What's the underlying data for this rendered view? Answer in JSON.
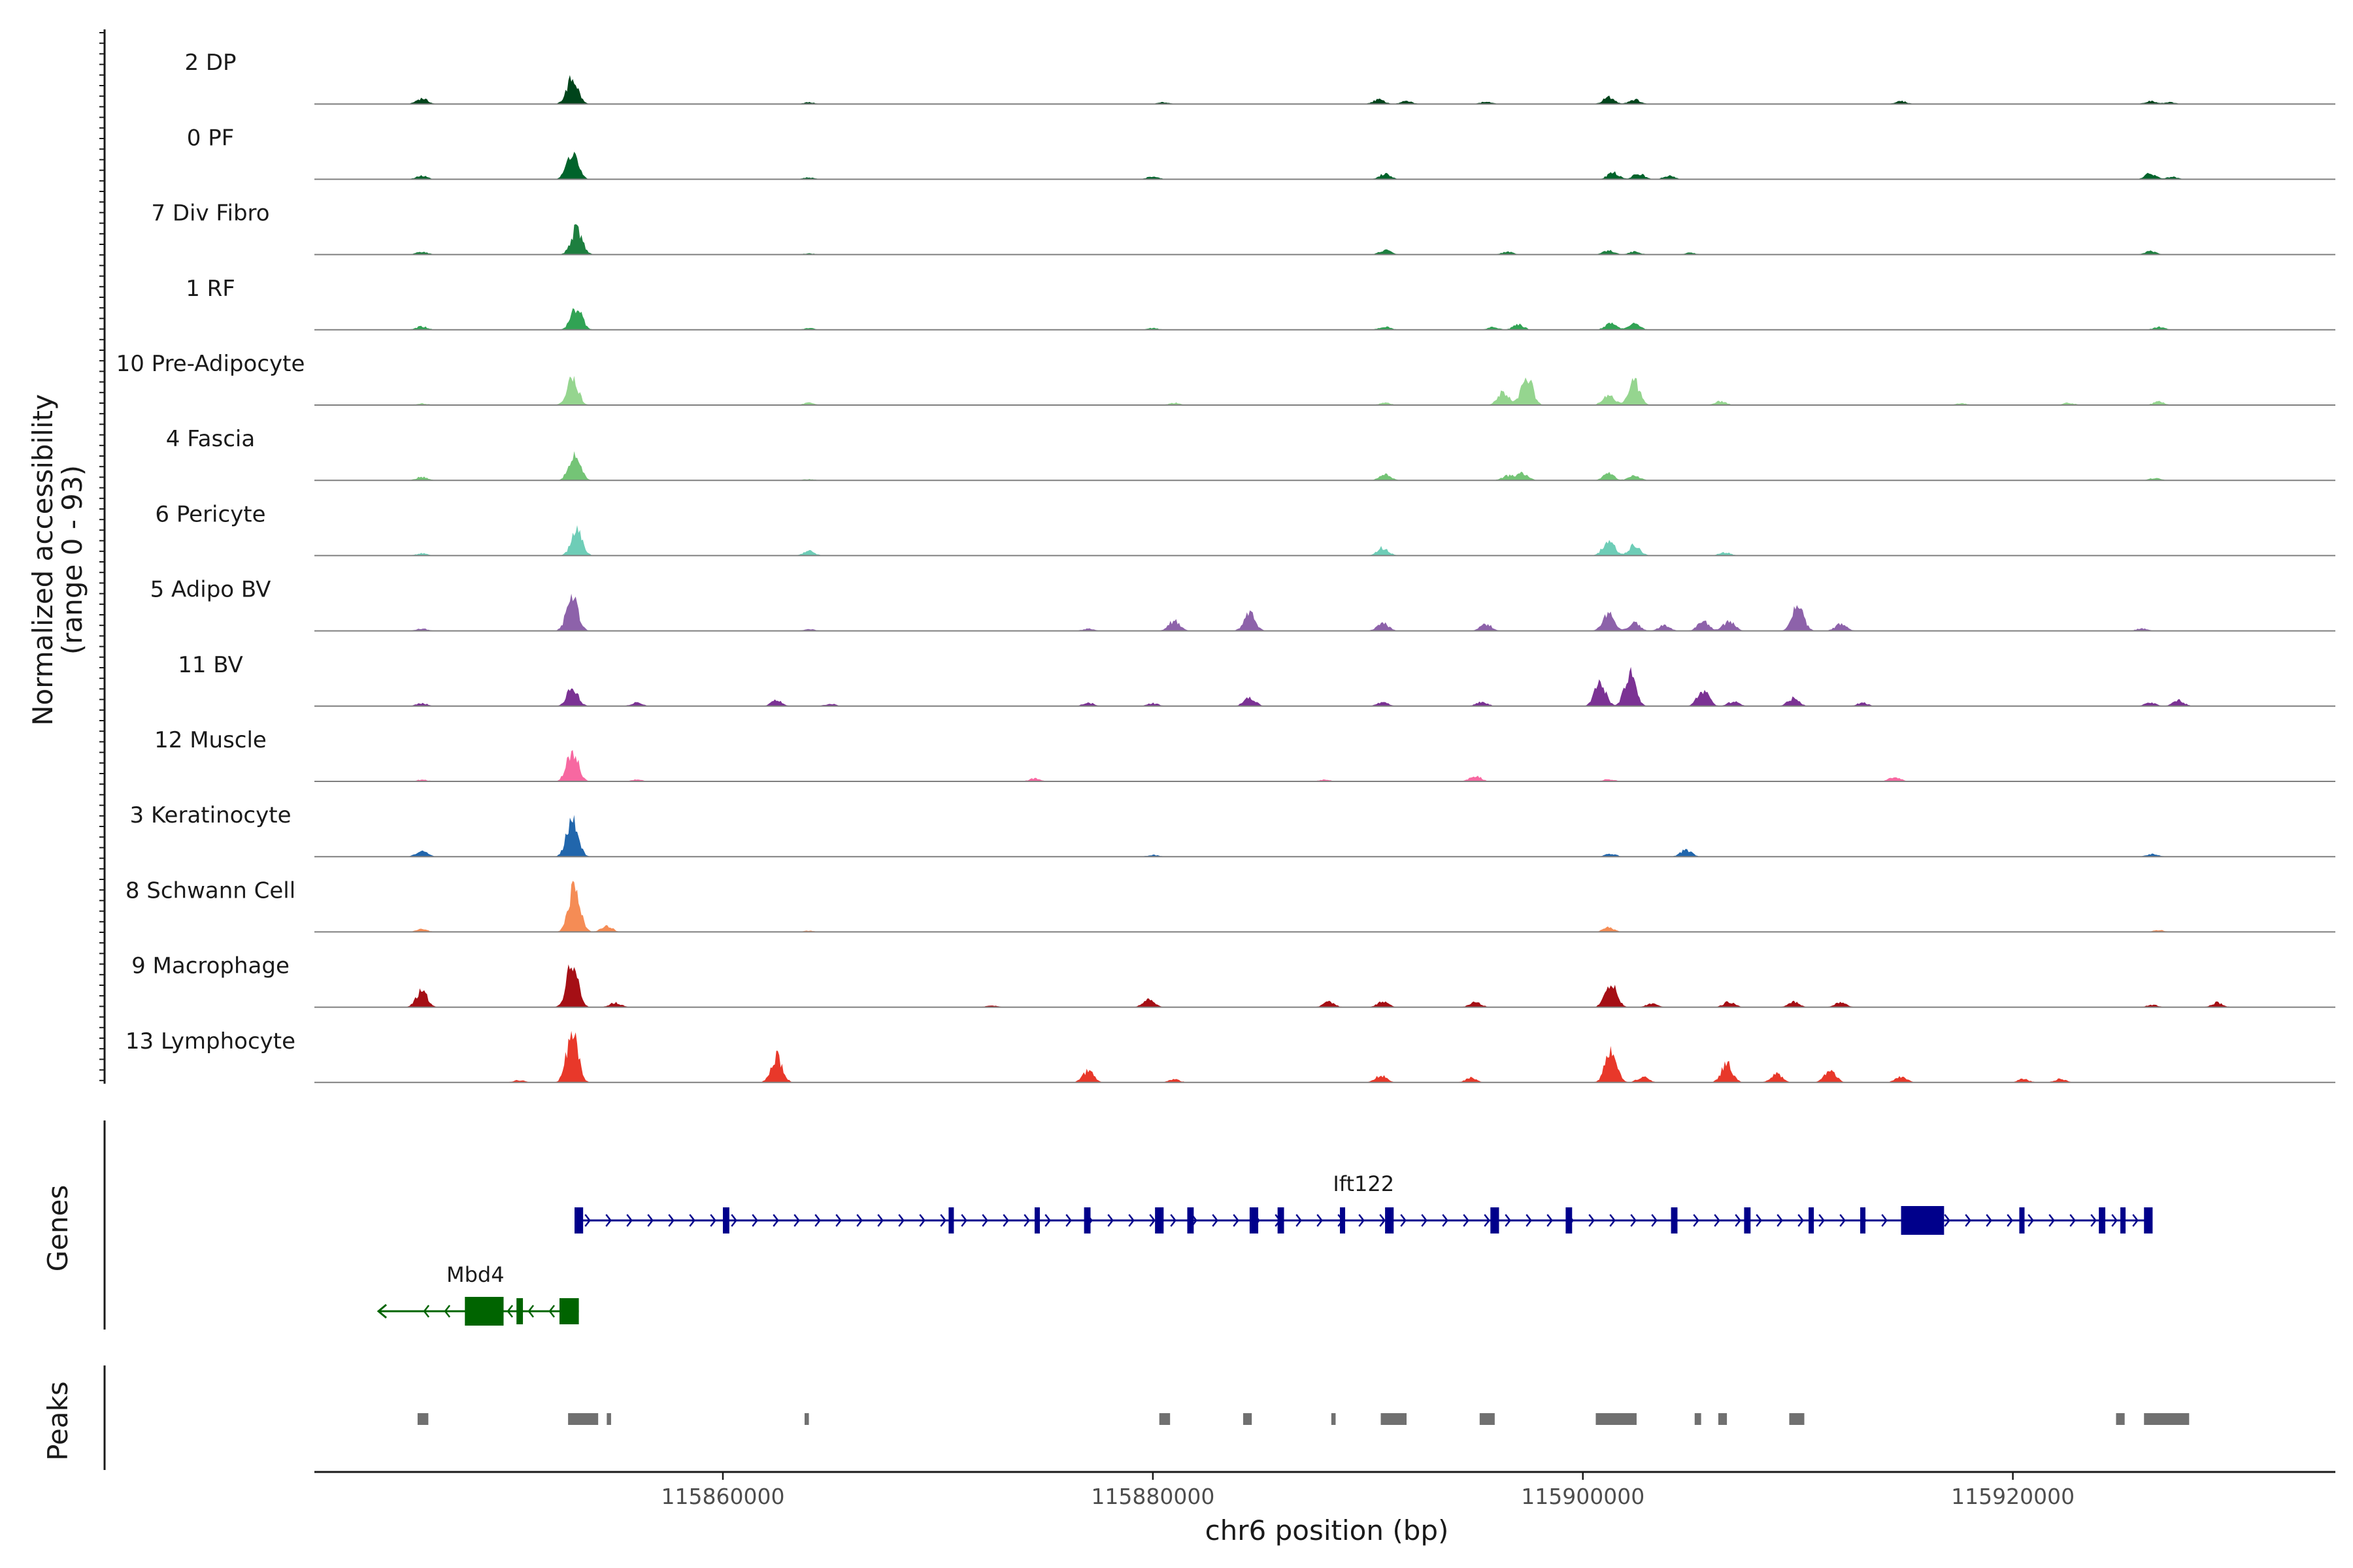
{
  "chart_data": {
    "type": "area",
    "title": "",
    "xlabel": "chr6 position (bp)",
    "ylabel": "Normalized accessibility",
    "ylabel_sub": "(range 0 - 93)",
    "y_range": [
      0,
      93
    ],
    "xlim": [
      115841000,
      115935000
    ],
    "x_ticks": [
      {
        "value": 115860000,
        "label": "115860000"
      },
      {
        "value": 115880000,
        "label": "115880000"
      },
      {
        "value": 115900000,
        "label": "115900000"
      },
      {
        "value": 115920000,
        "label": "115920000"
      }
    ],
    "tracks": [
      {
        "name": "2 DP",
        "color": "#00441b",
        "peaks": [
          [
            115846000,
            10
          ],
          [
            115853000,
            45
          ],
          [
            115864000,
            3
          ],
          [
            115880500,
            3
          ],
          [
            115890500,
            8
          ],
          [
            115891800,
            5
          ],
          [
            115895500,
            4
          ],
          [
            115901200,
            12
          ],
          [
            115902400,
            8
          ],
          [
            115914800,
            5
          ],
          [
            115926400,
            5
          ],
          [
            115927300,
            3
          ]
        ]
      },
      {
        "name": "0 PF",
        "color": "#00632b",
        "peaks": [
          [
            115846000,
            6
          ],
          [
            115853000,
            48
          ],
          [
            115864000,
            3
          ],
          [
            115880000,
            5
          ],
          [
            115890800,
            10
          ],
          [
            115901400,
            12
          ],
          [
            115902600,
            10
          ],
          [
            115904000,
            6
          ],
          [
            115926400,
            10
          ],
          [
            115927400,
            4
          ]
        ]
      },
      {
        "name": "7 Div Fibro",
        "color": "#1d7f3f",
        "peaks": [
          [
            115846000,
            5
          ],
          [
            115853200,
            45
          ],
          [
            115864000,
            2
          ],
          [
            115890800,
            8
          ],
          [
            115896500,
            5
          ],
          [
            115901200,
            7
          ],
          [
            115902400,
            5
          ],
          [
            115905000,
            3
          ],
          [
            115926400,
            6
          ]
        ]
      },
      {
        "name": "1 RF",
        "color": "#31a354",
        "peaks": [
          [
            115846000,
            6
          ],
          [
            115853200,
            40
          ],
          [
            115864000,
            3
          ],
          [
            115880000,
            3
          ],
          [
            115890800,
            6
          ],
          [
            115895800,
            5
          ],
          [
            115897000,
            9
          ],
          [
            115901300,
            12
          ],
          [
            115902400,
            11
          ],
          [
            115926800,
            5
          ]
        ]
      },
      {
        "name": "10 Pre-Adipocyte",
        "color": "#95d58f",
        "peaks": [
          [
            115846000,
            3
          ],
          [
            115853000,
            48
          ],
          [
            115864000,
            4
          ],
          [
            115881000,
            4
          ],
          [
            115890800,
            4
          ],
          [
            115896300,
            22
          ],
          [
            115897400,
            50
          ],
          [
            115901200,
            20
          ],
          [
            115902400,
            40
          ],
          [
            115906400,
            7
          ],
          [
            115917600,
            3
          ],
          [
            115922600,
            4
          ],
          [
            115926800,
            6
          ]
        ]
      },
      {
        "name": "4 Fascia",
        "color": "#74c476",
        "peaks": [
          [
            115846000,
            6
          ],
          [
            115853100,
            48
          ],
          [
            115864000,
            2
          ],
          [
            115890800,
            11
          ],
          [
            115896500,
            8
          ],
          [
            115897200,
            12
          ],
          [
            115901200,
            12
          ],
          [
            115902400,
            8
          ],
          [
            115926600,
            4
          ]
        ]
      },
      {
        "name": "6 Pericyte",
        "color": "#6ecdb7",
        "peaks": [
          [
            115846000,
            4
          ],
          [
            115853200,
            42
          ],
          [
            115864000,
            8
          ],
          [
            115890700,
            14
          ],
          [
            115901200,
            28
          ],
          [
            115902400,
            18
          ],
          [
            115906600,
            6
          ]
        ]
      },
      {
        "name": "5 Adipo BV",
        "color": "#8d62aa",
        "peaks": [
          [
            115846000,
            4
          ],
          [
            115853000,
            62
          ],
          [
            115864000,
            3
          ],
          [
            115877000,
            4
          ],
          [
            115881000,
            18
          ],
          [
            115884500,
            30
          ],
          [
            115890700,
            14
          ],
          [
            115895500,
            12
          ],
          [
            115901200,
            32
          ],
          [
            115902400,
            14
          ],
          [
            115903800,
            10
          ],
          [
            115905600,
            16
          ],
          [
            115906800,
            18
          ],
          [
            115910000,
            48
          ],
          [
            115912000,
            12
          ],
          [
            115926000,
            4
          ]
        ]
      },
      {
        "name": "11 BV",
        "color": "#7b3294",
        "peaks": [
          [
            115846000,
            5
          ],
          [
            115853000,
            32
          ],
          [
            115856000,
            6
          ],
          [
            115862500,
            10
          ],
          [
            115865000,
            4
          ],
          [
            115877000,
            6
          ],
          [
            115880000,
            5
          ],
          [
            115884500,
            16
          ],
          [
            115890700,
            8
          ],
          [
            115895300,
            8
          ],
          [
            115900800,
            40
          ],
          [
            115902200,
            55
          ],
          [
            115905600,
            28
          ],
          [
            115907000,
            8
          ],
          [
            115909800,
            14
          ],
          [
            115913000,
            6
          ],
          [
            115926400,
            6
          ],
          [
            115927700,
            10
          ]
        ]
      },
      {
        "name": "12 Muscle",
        "color": "#f768a1",
        "peaks": [
          [
            115846000,
            3
          ],
          [
            115853000,
            55
          ],
          [
            115856000,
            3
          ],
          [
            115874500,
            5
          ],
          [
            115888000,
            3
          ],
          [
            115895000,
            10
          ],
          [
            115901200,
            4
          ],
          [
            115914500,
            8
          ]
        ]
      },
      {
        "name": "3 Keratinocyte",
        "color": "#2166ac",
        "peaks": [
          [
            115846000,
            10
          ],
          [
            115853000,
            68
          ],
          [
            115880000,
            3
          ],
          [
            115901300,
            5
          ],
          [
            115904800,
            12
          ],
          [
            115926500,
            5
          ]
        ]
      },
      {
        "name": "8 Schwann Cell",
        "color": "#f58c55",
        "peaks": [
          [
            115846000,
            5
          ],
          [
            115853100,
            80
          ],
          [
            115854600,
            10
          ],
          [
            115864000,
            2
          ],
          [
            115901200,
            8
          ],
          [
            115926800,
            3
          ]
        ]
      },
      {
        "name": "9 Macrophage",
        "color": "#a50f15",
        "peaks": [
          [
            115846000,
            28
          ],
          [
            115853000,
            80
          ],
          [
            115855000,
            8
          ],
          [
            115872500,
            3
          ],
          [
            115879800,
            14
          ],
          [
            115888200,
            9
          ],
          [
            115890700,
            10
          ],
          [
            115895000,
            10
          ],
          [
            115901300,
            46
          ],
          [
            115903200,
            6
          ],
          [
            115906800,
            10
          ],
          [
            115909800,
            9
          ],
          [
            115912000,
            9
          ],
          [
            115926500,
            4
          ],
          [
            115929500,
            8
          ]
        ]
      },
      {
        "name": "13 Lymphocyte",
        "color": "#e8382a",
        "peaks": [
          [
            115850500,
            4
          ],
          [
            115853000,
            88
          ],
          [
            115862500,
            45
          ],
          [
            115877000,
            20
          ],
          [
            115881000,
            5
          ],
          [
            115890600,
            12
          ],
          [
            115894800,
            8
          ],
          [
            115901300,
            60
          ],
          [
            115902800,
            10
          ],
          [
            115906700,
            32
          ],
          [
            115909000,
            16
          ],
          [
            115911500,
            22
          ],
          [
            115914800,
            10
          ],
          [
            115920500,
            6
          ],
          [
            115922200,
            6
          ]
        ]
      }
    ],
    "genes": [
      {
        "name": "Ift122",
        "color": "#00008b",
        "start": 115853200,
        "end": 115926400,
        "strand": "+",
        "exons": [
          [
            115853100,
            115853500
          ],
          [
            115860000,
            115860300
          ],
          [
            115870500,
            115870700
          ],
          [
            115874500,
            115874700
          ],
          [
            115876800,
            115877100
          ],
          [
            115880100,
            115880500
          ],
          [
            115881600,
            115881900
          ],
          [
            115884500,
            115884900
          ],
          [
            115885800,
            115886100
          ],
          [
            115888700,
            115888900
          ],
          [
            115890800,
            115891200
          ],
          [
            115895700,
            115896100
          ],
          [
            115899200,
            115899500
          ],
          [
            115904100,
            115904400
          ],
          [
            115907500,
            115907800
          ],
          [
            115910500,
            115910700
          ],
          [
            115912900,
            115913100
          ],
          [
            115914800,
            115916800
          ],
          [
            115920300,
            115920500
          ],
          [
            115924000,
            115924300
          ],
          [
            115925000,
            115925200
          ],
          [
            115926100,
            115926500
          ]
        ]
      },
      {
        "name": "Mbd4",
        "color": "#006400",
        "start": 115845500,
        "end": 115853300,
        "strand": "-",
        "exons": [
          [
            115848000,
            115849800
          ],
          [
            115850400,
            115850700
          ],
          [
            115852400,
            115853300
          ]
        ]
      }
    ],
    "peaks_track": {
      "label": "Peaks",
      "color": "#707070",
      "regions": [
        [
          115845800,
          115846300
        ],
        [
          115852800,
          115854200
        ],
        [
          115854600,
          115854800
        ],
        [
          115863800,
          115864000
        ],
        [
          115880300,
          115880800
        ],
        [
          115884200,
          115884600
        ],
        [
          115888300,
          115888500
        ],
        [
          115890600,
          115891800
        ],
        [
          115895200,
          115895900
        ],
        [
          115900600,
          115902500
        ],
        [
          115905200,
          115905500
        ],
        [
          115906300,
          115906700
        ],
        [
          115909600,
          115910300
        ],
        [
          115924800,
          115925200
        ],
        [
          115926100,
          115928200
        ]
      ]
    },
    "panel_labels": {
      "genes": "Genes",
      "peaks": "Peaks"
    }
  }
}
